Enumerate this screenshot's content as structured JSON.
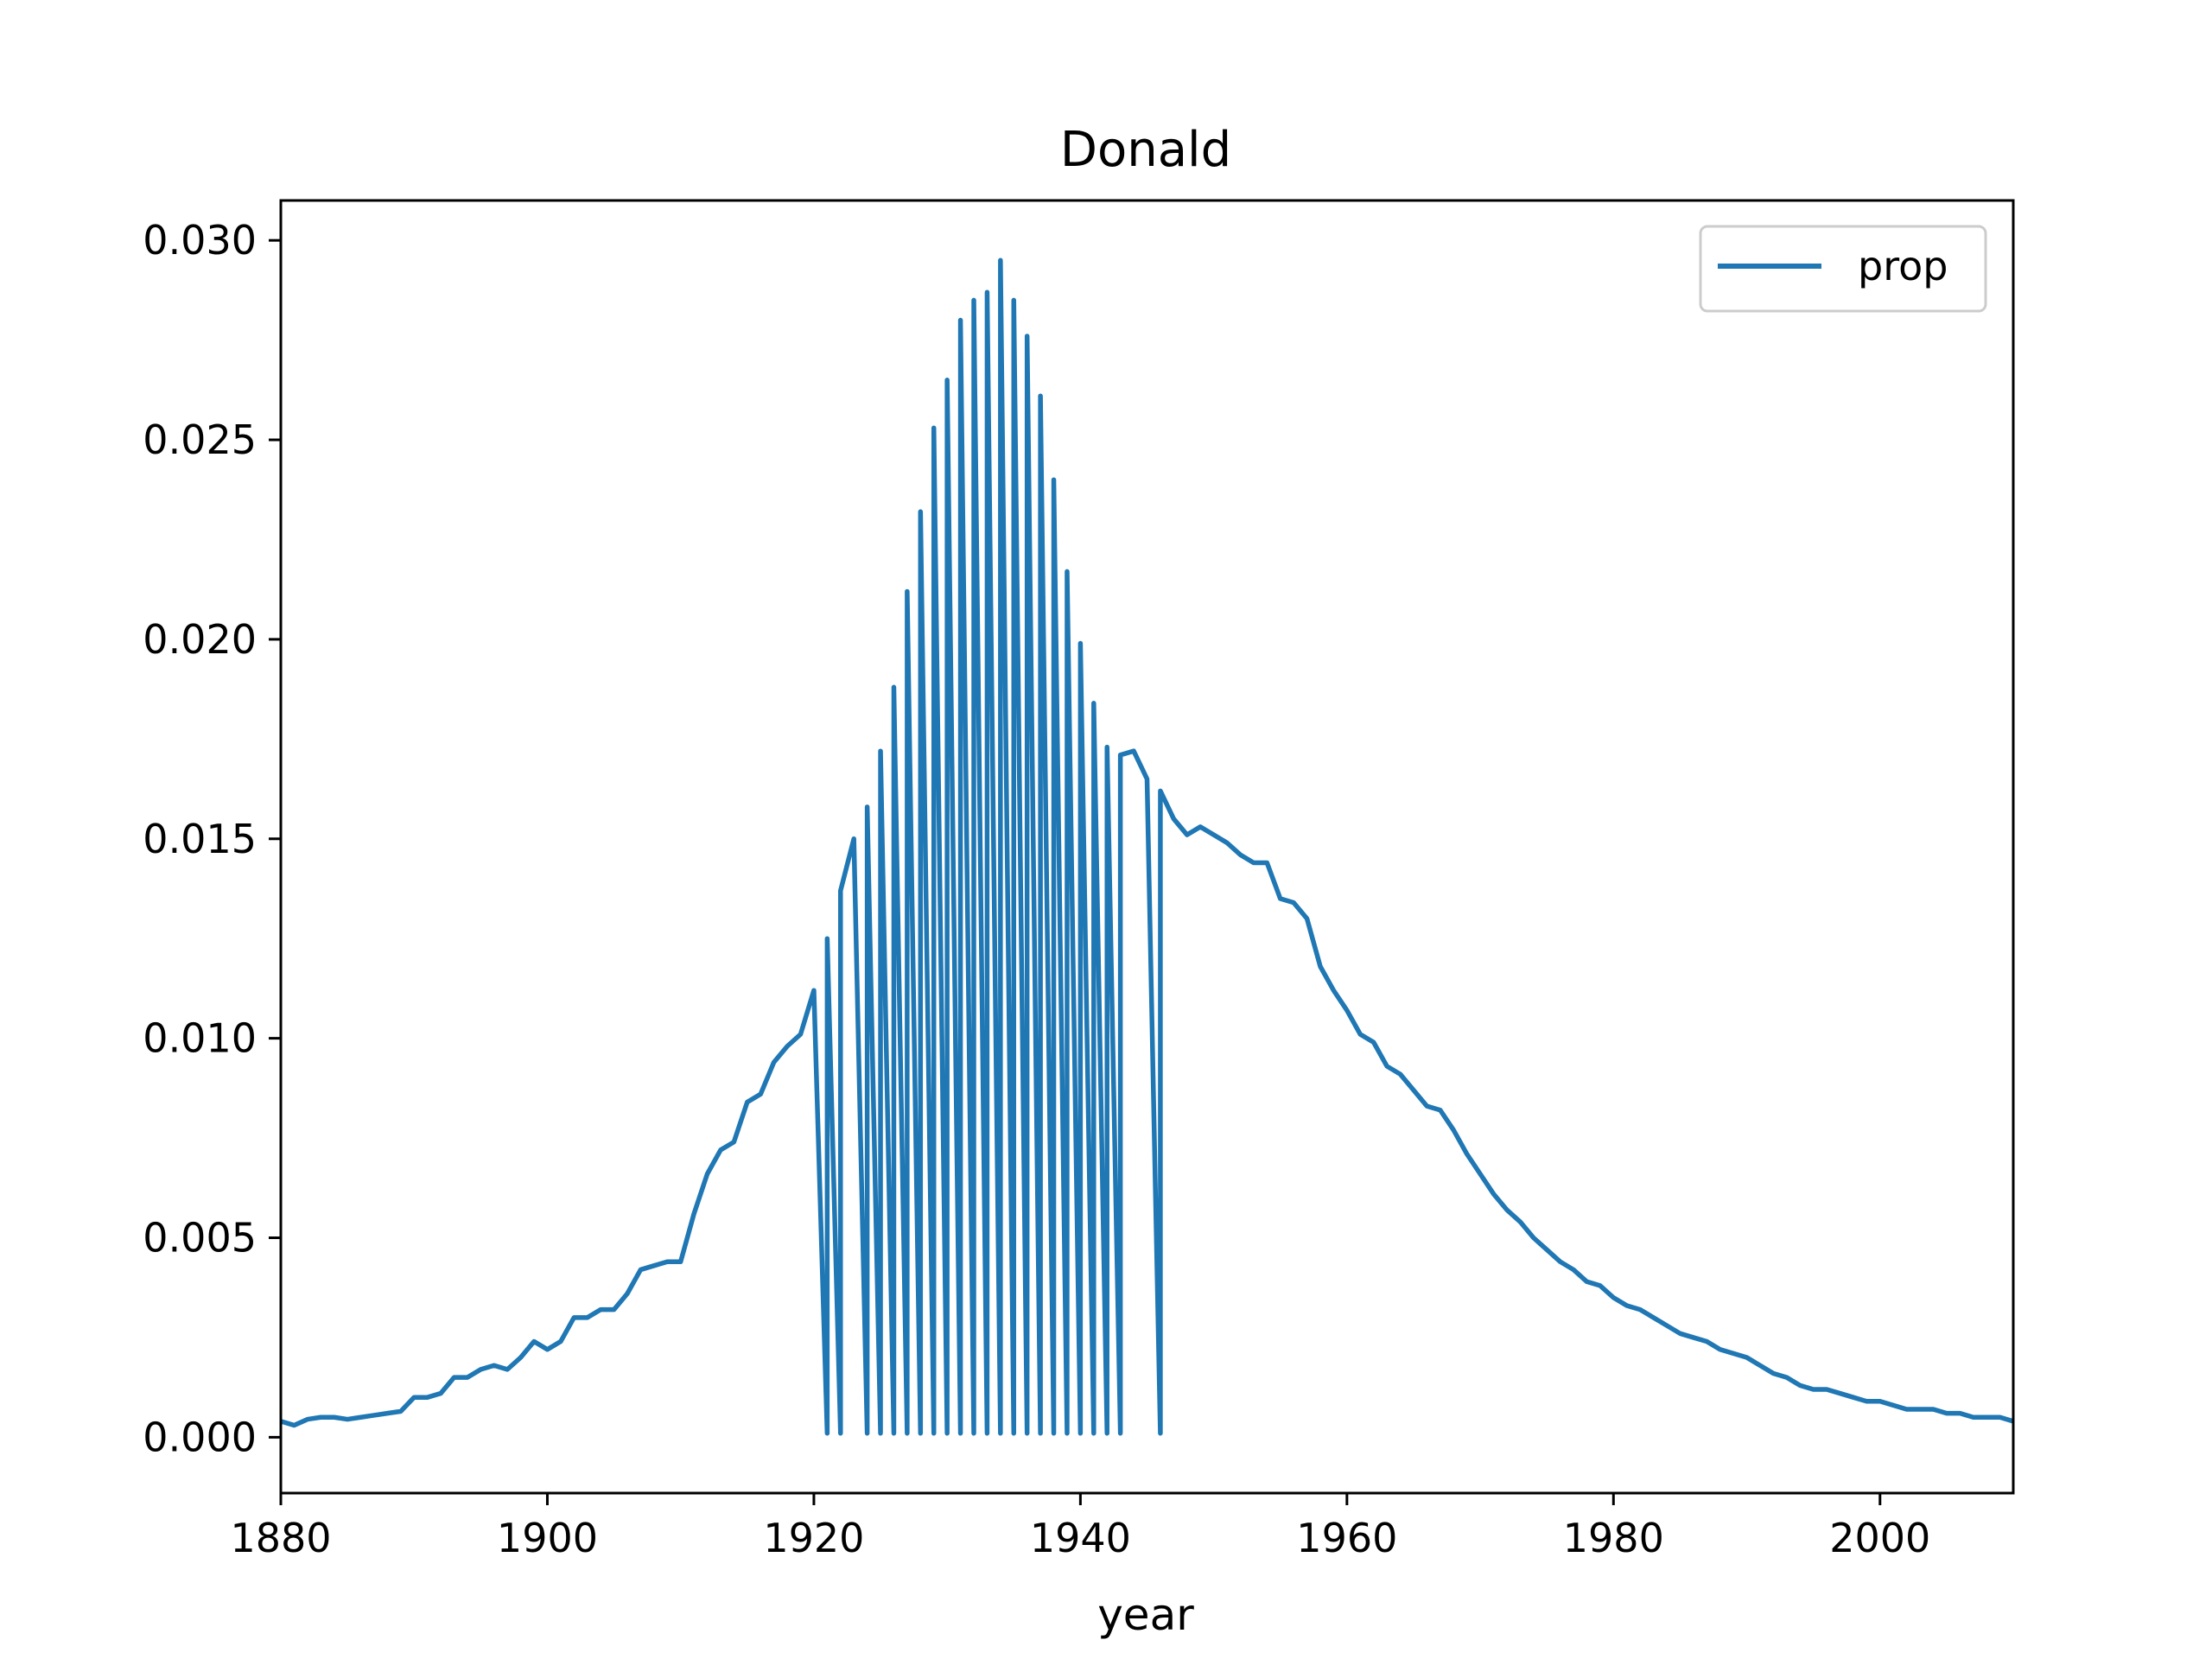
{
  "chart_data": {
    "type": "line",
    "title": "Donald",
    "xlabel": "year",
    "ylabel": "",
    "xlim": [
      1880,
      2010
    ],
    "ylim": [
      -0.0014,
      0.031
    ],
    "xticks": [
      1880,
      1900,
      1920,
      1940,
      1960,
      1980,
      2000
    ],
    "xtick_labels": [
      "1880",
      "1900",
      "1920",
      "1940",
      "1960",
      "1980",
      "2000"
    ],
    "yticks": [
      0.0,
      0.005,
      0.01,
      0.015,
      0.02,
      0.025,
      0.03
    ],
    "ytick_labels": [
      "0.000",
      "0.005",
      "0.010",
      "0.015",
      "0.020",
      "0.025",
      "0.030"
    ],
    "grid": false,
    "legend": {
      "position": "top-right",
      "entries": [
        "prop"
      ]
    },
    "colors": {
      "line": "#1f77b4"
    },
    "series": [
      {
        "name": "prop",
        "x": [
          1880,
          1881,
          1882,
          1883,
          1884,
          1885,
          1886,
          1887,
          1888,
          1889,
          1890,
          1891,
          1892,
          1893,
          1894,
          1895,
          1896,
          1897,
          1898,
          1899,
          1900,
          1901,
          1902,
          1903,
          1904,
          1905,
          1906,
          1907,
          1908,
          1909,
          1910,
          1911,
          1912,
          1913,
          1914,
          1915,
          1916,
          1917,
          1918,
          1919,
          1920,
          1921,
          1921,
          1922,
          1922,
          1923,
          1924,
          1924,
          1925,
          1925,
          1926,
          1926,
          1927,
          1927,
          1928,
          1928,
          1929,
          1929,
          1930,
          1930,
          1931,
          1931,
          1932,
          1932,
          1933,
          1933,
          1934,
          1934,
          1935,
          1935,
          1936,
          1936,
          1937,
          1937,
          1938,
          1938,
          1939,
          1939,
          1940,
          1940,
          1941,
          1941,
          1942,
          1942,
          1943,
          1943,
          1944,
          1945,
          1946,
          1946,
          1947,
          1948,
          1949,
          1950,
          1951,
          1952,
          1953,
          1954,
          1955,
          1956,
          1957,
          1958,
          1959,
          1960,
          1961,
          1962,
          1963,
          1964,
          1965,
          1966,
          1967,
          1968,
          1969,
          1970,
          1971,
          1972,
          1973,
          1974,
          1975,
          1976,
          1977,
          1978,
          1979,
          1980,
          1981,
          1982,
          1983,
          1984,
          1985,
          1986,
          1987,
          1988,
          1989,
          1990,
          1991,
          1992,
          1993,
          1994,
          1995,
          1996,
          1997,
          1998,
          1999,
          2000,
          2001,
          2002,
          2003,
          2004,
          2005,
          2006,
          2007,
          2008,
          2009,
          2010
        ],
        "y": [
          0.0004,
          0.0003,
          0.00045,
          0.0005,
          0.0005,
          0.00045,
          0.0005,
          0.00055,
          0.0006,
          0.00065,
          0.001,
          0.001,
          0.0011,
          0.0015,
          0.0015,
          0.0017,
          0.0018,
          0.0017,
          0.002,
          0.0024,
          0.0022,
          0.0024,
          0.003,
          0.003,
          0.0032,
          0.0032,
          0.0036,
          0.0042,
          0.0043,
          0.0044,
          0.0044,
          0.0056,
          0.0066,
          0.0072,
          0.0074,
          0.0084,
          0.0086,
          0.0094,
          0.0098,
          0.0101,
          0.0112,
          0.0001,
          0.0125,
          0.0001,
          0.0137,
          0.015,
          0.0001,
          0.0158,
          0.0001,
          0.0172,
          0.0001,
          0.0188,
          0.0001,
          0.0212,
          0.0001,
          0.0232,
          0.0001,
          0.0253,
          0.0001,
          0.0265,
          0.0001,
          0.028,
          0.0001,
          0.0285,
          0.0001,
          0.0287,
          0.0001,
          0.0295,
          0.0001,
          0.0285,
          0.0001,
          0.0276,
          0.0001,
          0.0261,
          0.0001,
          0.024,
          0.0001,
          0.0217,
          0.0001,
          0.0199,
          0.0001,
          0.0184,
          0.0001,
          0.0173,
          0.0001,
          0.0171,
          0.0172,
          0.0165,
          0.0001,
          0.0162,
          0.0155,
          0.0151,
          0.0153,
          0.0151,
          0.0149,
          0.0146,
          0.0144,
          0.0144,
          0.0135,
          0.0134,
          0.013,
          0.0118,
          0.0112,
          0.0107,
          0.0101,
          0.0099,
          0.0093,
          0.0091,
          0.0087,
          0.0083,
          0.0082,
          0.0077,
          0.0071,
          0.0066,
          0.0061,
          0.0057,
          0.0054,
          0.005,
          0.0047,
          0.0044,
          0.0042,
          0.0039,
          0.0038,
          0.0035,
          0.0033,
          0.0032,
          0.003,
          0.0028,
          0.0026,
          0.0025,
          0.0024,
          0.0022,
          0.0021,
          0.002,
          0.0018,
          0.0016,
          0.0015,
          0.0013,
          0.0012,
          0.0012,
          0.0011,
          0.001,
          0.0009,
          0.0009,
          0.0008,
          0.0007,
          0.0007,
          0.0007,
          0.0006,
          0.0006,
          0.0005,
          0.0005,
          0.0005,
          0.0004
        ]
      }
    ]
  }
}
